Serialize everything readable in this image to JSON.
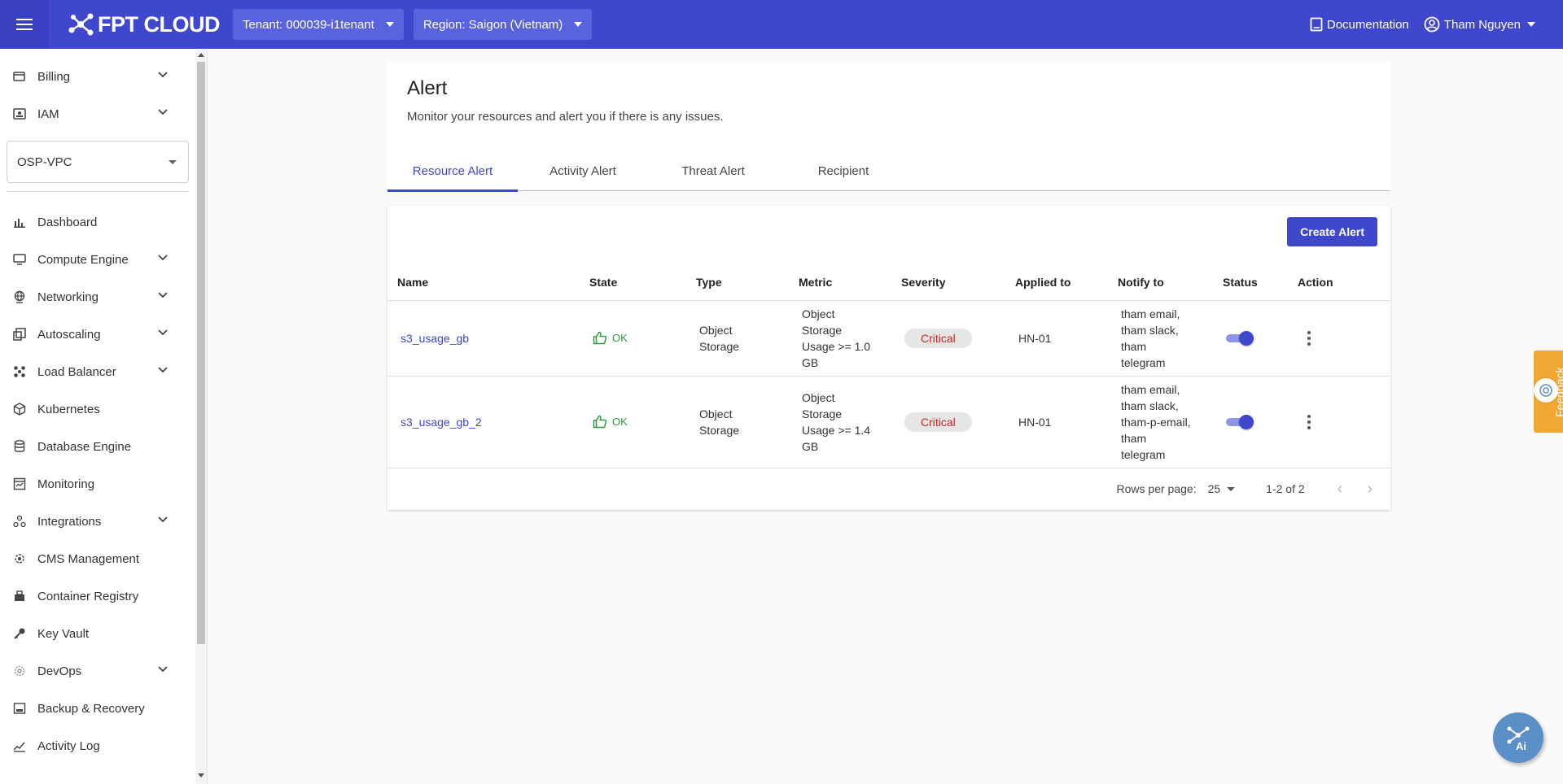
{
  "header": {
    "brand": "FPT CLOUD",
    "tenant_label": "Tenant: 000039-i1tenant",
    "region_label": "Region: Saigon (Vietnam)",
    "documentation": "Documentation",
    "user_name": "Tham Nguyen"
  },
  "sidebar": {
    "top_items": [
      {
        "label": "Billing",
        "icon": "billing-icon"
      },
      {
        "label": "IAM",
        "icon": "iam-icon"
      }
    ],
    "project": "OSP-VPC",
    "items": [
      {
        "label": "Dashboard",
        "icon": "dashboard-icon"
      },
      {
        "label": "Compute Engine",
        "icon": "monitor-icon"
      },
      {
        "label": "Networking",
        "icon": "globe-icon"
      },
      {
        "label": "Autoscaling",
        "icon": "autoscaling-icon"
      },
      {
        "label": "Load Balancer",
        "icon": "load-balancer-icon"
      },
      {
        "label": "Kubernetes",
        "icon": "cube-icon"
      },
      {
        "label": "Database Engine",
        "icon": "database-icon"
      },
      {
        "label": "Monitoring",
        "icon": "monitoring-icon"
      },
      {
        "label": "Integrations",
        "icon": "integrations-icon"
      },
      {
        "label": "CMS Management",
        "icon": "cms-icon"
      },
      {
        "label": "Container Registry",
        "icon": "container-icon"
      },
      {
        "label": "Key Vault",
        "icon": "key-icon"
      },
      {
        "label": "DevOps",
        "icon": "devops-icon"
      },
      {
        "label": "Backup & Recovery",
        "icon": "backup-icon"
      },
      {
        "label": "Activity Log",
        "icon": "activity-icon"
      }
    ]
  },
  "page": {
    "title": "Alert",
    "subtitle": "Monitor your resources and alert you if there is any issues.",
    "tabs": [
      "Resource Alert",
      "Activity Alert",
      "Threat Alert",
      "Recipient"
    ],
    "create_button": "Create Alert"
  },
  "table": {
    "columns": [
      "Name",
      "State",
      "Type",
      "Metric",
      "Severity",
      "Applied to",
      "Notify to",
      "Status",
      "Action"
    ],
    "rows": [
      {
        "name": "s3_usage_gb",
        "state": "OK",
        "type": [
          "Object",
          "Storage"
        ],
        "metric": [
          "Object",
          "Storage",
          "Usage >= 1.0",
          "GB"
        ],
        "severity": "Critical",
        "applied_to": "HN-01",
        "notify_to": [
          "tham email,",
          "tham slack,",
          "tham",
          "telegram"
        ],
        "status_enabled": true
      },
      {
        "name": "s3_usage_gb_2",
        "state": "OK",
        "type": [
          "Object",
          "Storage"
        ],
        "metric": [
          "Object",
          "Storage",
          "Usage >= 1.4",
          "GB"
        ],
        "severity": "Critical",
        "applied_to": "HN-01",
        "notify_to": [
          "tham email,",
          "tham slack,",
          "tham-p-email,",
          "tham",
          "telegram"
        ],
        "status_enabled": true
      }
    ]
  },
  "pagination": {
    "rows_per_page_label": "Rows per page:",
    "rows_per_page": "25",
    "range": "1-2 of 2",
    "prev": "‹",
    "next": "›"
  },
  "feedback": "Feedback",
  "colors": {
    "primary": "#3f48cc",
    "ok": "#2e9a3a",
    "critical": "#c62828",
    "feedback": "#f0a733"
  }
}
